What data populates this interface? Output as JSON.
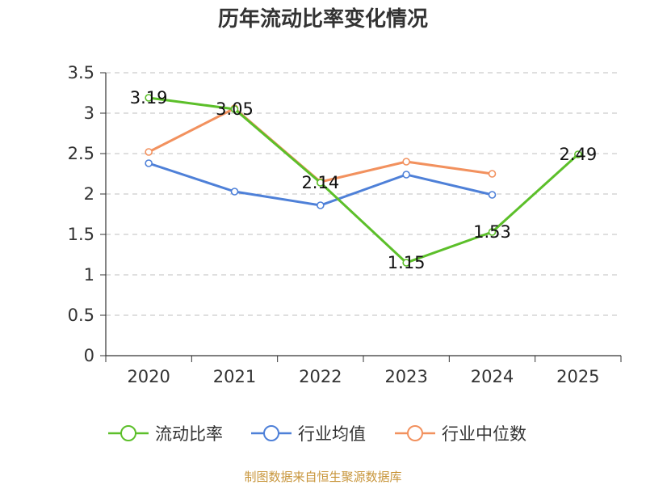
{
  "chart_data": {
    "type": "line",
    "title": "历年流动比率变化情况",
    "categories": [
      "2020",
      "2021",
      "2022",
      "2023",
      "2024",
      "2025"
    ],
    "yticks": [
      "0",
      "0.5",
      "1",
      "1.5",
      "2",
      "2.5",
      "3",
      "3.5"
    ],
    "ylim": [
      0,
      3.5
    ],
    "grid": true,
    "legend_position": "bottom",
    "series": [
      {
        "name": "流动比率",
        "color": "#5cbf2a",
        "values": [
          3.19,
          3.05,
          2.14,
          1.15,
          1.53,
          2.49
        ],
        "labels": [
          "3.19",
          "3.05",
          "2.14",
          "1.15",
          "1.53",
          "2.49"
        ]
      },
      {
        "name": "行业均值",
        "color": "#4e80d8",
        "values": [
          2.38,
          2.03,
          1.86,
          2.24,
          1.99,
          null
        ]
      },
      {
        "name": "行业中位数",
        "color": "#f2915e",
        "values": [
          2.52,
          3.06,
          2.15,
          2.4,
          2.25,
          null
        ]
      }
    ]
  },
  "source": "制图数据来自恒生聚源数据库"
}
